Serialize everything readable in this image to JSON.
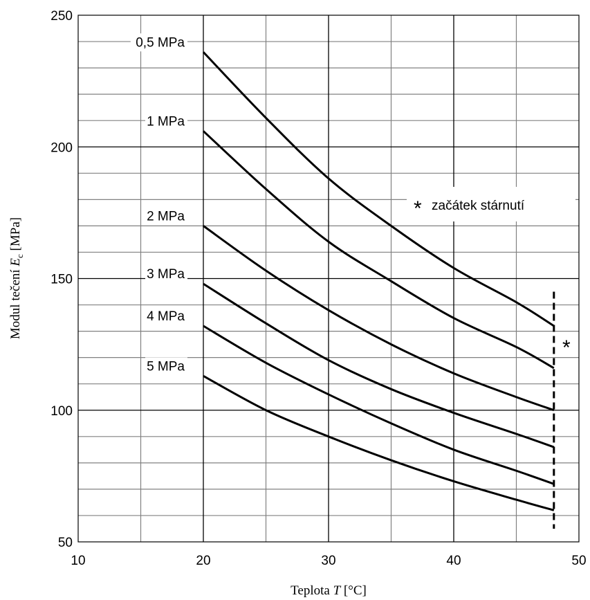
{
  "chart_data": {
    "type": "line",
    "title": "",
    "xlabel": {
      "prefix": "Teplota ",
      "symbol": "T",
      "unit": " [°C]"
    },
    "ylabel": {
      "prefix": "Modul tečení ",
      "symbol": "E",
      "subscript": "c",
      "unit": " [MPa]"
    },
    "xlim": [
      10,
      50
    ],
    "ylim": [
      50,
      250
    ],
    "xticks": [
      10,
      20,
      30,
      40,
      50
    ],
    "yticks": [
      50,
      100,
      150,
      200,
      250
    ],
    "grid": {
      "x_major_step": 10,
      "x_minor_step": 5,
      "y_major_step": 50,
      "y_minor_step": 10
    },
    "series": [
      {
        "name": "0,5 MPa",
        "x": [
          20,
          25,
          30,
          35,
          40,
          45,
          48
        ],
        "y": [
          236,
          211,
          188,
          170,
          154,
          141,
          132
        ]
      },
      {
        "name": "1 MPa",
        "x": [
          20,
          25,
          30,
          35,
          40,
          45,
          48
        ],
        "y": [
          206,
          184,
          164,
          149,
          135,
          124,
          116
        ]
      },
      {
        "name": "2 MPa",
        "x": [
          20,
          25,
          30,
          35,
          40,
          45,
          48
        ],
        "y": [
          170,
          153,
          138,
          125,
          114,
          105,
          100
        ]
      },
      {
        "name": "3 MPa",
        "x": [
          20,
          25,
          30,
          35,
          40,
          45,
          48
        ],
        "y": [
          148,
          133,
          119,
          108,
          99,
          91,
          86
        ]
      },
      {
        "name": "4 MPa",
        "x": [
          20,
          25,
          30,
          35,
          40,
          45,
          48
        ],
        "y": [
          132,
          118,
          106,
          95,
          85,
          77,
          72
        ]
      },
      {
        "name": "5 MPa",
        "x": [
          20,
          25,
          30,
          35,
          40,
          45,
          48
        ],
        "y": [
          113,
          100,
          90,
          81,
          73,
          66,
          62
        ]
      }
    ],
    "aging_marker": {
      "x": 48,
      "y_range": [
        55,
        145
      ],
      "style": "dashed",
      "symbol": "*"
    },
    "annotation": {
      "star": "*",
      "text": "začátek stárnutí"
    },
    "colors": {
      "line": "#000000",
      "major_grid": "#000000",
      "minor_grid": "#808080"
    }
  }
}
